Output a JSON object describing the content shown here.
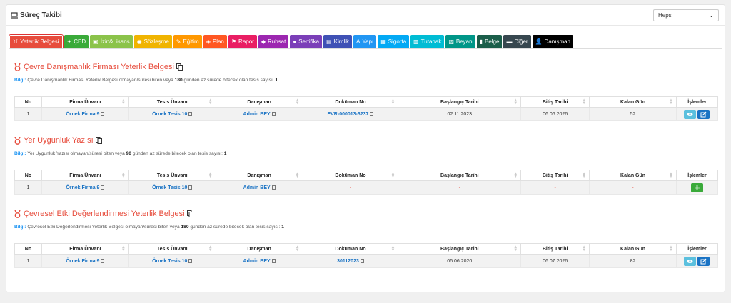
{
  "app": {
    "title": "Süreç Takibi",
    "filter_value": "Hepsi"
  },
  "tabs": [
    {
      "label": "Yeterlik Belgesi",
      "color": "#e74c3c",
      "icon": "medal-icon"
    },
    {
      "label": "ÇED",
      "color": "#3aaa3a",
      "icon": "tree-icon"
    },
    {
      "label": "İzin&Lisans",
      "color": "#8bc34a",
      "icon": "license-icon"
    },
    {
      "label": "Sözleşme",
      "color": "#f0b400",
      "icon": "handshake-icon"
    },
    {
      "label": "Eğitim",
      "color": "#ff9800",
      "icon": "training-icon"
    },
    {
      "label": "Plan",
      "color": "#ff5722",
      "icon": "cubes-icon"
    },
    {
      "label": "Rapor",
      "color": "#e91e63",
      "icon": "flag-icon"
    },
    {
      "label": "Ruhsat",
      "color": "#9c27b0",
      "icon": "stamp-icon"
    },
    {
      "label": "Sertifika",
      "color": "#7b3fb8",
      "icon": "certificate-icon"
    },
    {
      "label": "Kimlik",
      "color": "#3f51b5",
      "icon": "id-card-icon"
    },
    {
      "label": "Yapı",
      "color": "#2196f3",
      "icon": "building-icon"
    },
    {
      "label": "Sigorta",
      "color": "#03a9f4",
      "icon": "insurance-icon"
    },
    {
      "label": "Tutanak",
      "color": "#00bcd4",
      "icon": "minutes-icon"
    },
    {
      "label": "Beyan",
      "color": "#009688",
      "icon": "declaration-icon"
    },
    {
      "label": "Belge",
      "color": "#1b5e4a",
      "icon": "document-icon"
    },
    {
      "label": "Diğer",
      "color": "#37474f",
      "icon": "folder-icon"
    },
    {
      "label": "Danışman",
      "color": "#000000",
      "icon": "user-icon"
    }
  ],
  "columns": [
    "No",
    "Firma Ünvanı",
    "Tesis Ünvanı",
    "Danışman",
    "Doküman No",
    "Başlangıç Tarihi",
    "Bitiş Tarihi",
    "Kalan Gün",
    "İşlemler"
  ],
  "sections": [
    {
      "title": "Çevre Danışmanlık Firması Yeterlik Belgesi",
      "info_label": "Bilgi:",
      "info_pre": "Çevre Danışmanlık Firması Yeterlik Belgesi olmayan/süresi biten veya",
      "info_days": "180",
      "info_mid": "günden az sürede bitecek olan tesis sayısı:",
      "info_count": "1",
      "row": {
        "no": "1",
        "firma": "Örnek Firma 9",
        "tesis": "Örnek Tesis 10",
        "danisman": "Admin BEY",
        "dokuman": "EVR-000013-3237",
        "baslangic": "02.11.2023",
        "bitis": "06.06.2026",
        "kalan": "52"
      }
    },
    {
      "title": "Yer Uygunluk Yazısı",
      "info_label": "Bilgi:",
      "info_pre": "Yer Uygunluk Yazısı olmayan/süresi biten veya",
      "info_days": "90",
      "info_mid": "günden az sürede bitecek olan tesis sayısı:",
      "info_count": "1",
      "row": {
        "no": "1",
        "firma": "Örnek Firma 9",
        "tesis": "Örnek Tesis 10",
        "danisman": "Admin BEY",
        "dokuman": "-",
        "baslangic": "-",
        "bitis": "-",
        "kalan": "-"
      }
    },
    {
      "title": "Çevresel Etki Değerlendirmesi Yeterlik Belgesi",
      "info_label": "Bilgi:",
      "info_pre": "Çevresel Etki Değerlendirmesi Yeterlik Belgesi olmayan/süresi biten veya",
      "info_days": "180",
      "info_mid": "günden az sürede bitecek olan tesis sayısı:",
      "info_count": "1",
      "row": {
        "no": "1",
        "firma": "Örnek Firma 9",
        "tesis": "Örnek Tesis 10",
        "danisman": "Admin BEY",
        "dokuman": "30112023",
        "baslangic": "06.06.2020",
        "bitis": "06.07.2026",
        "kalan": "82"
      }
    }
  ]
}
